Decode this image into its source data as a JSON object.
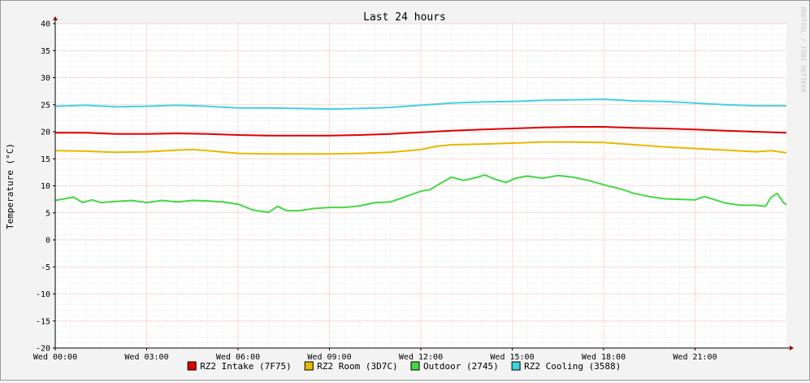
{
  "chart_data": {
    "type": "line",
    "title": "Last 24 hours",
    "ylabel": "Temperature (°C)",
    "xlabel": "",
    "watermark": "RRDTOOL / TOBI OETIKER",
    "ylim": [
      -20,
      40
    ],
    "xlim": [
      0,
      24
    ],
    "y_ticks": [
      40,
      35,
      30,
      25,
      20,
      15,
      10,
      5,
      0,
      -5,
      -10,
      -15,
      -20
    ],
    "x_ticks": [
      {
        "x": 0,
        "label": "Wed 00:00"
      },
      {
        "x": 3,
        "label": "Wed 03:00"
      },
      {
        "x": 6,
        "label": "Wed 06:00"
      },
      {
        "x": 9,
        "label": "Wed 09:00"
      },
      {
        "x": 12,
        "label": "Wed 12:00"
      },
      {
        "x": 15,
        "label": "Wed 15:00"
      },
      {
        "x": 18,
        "label": "Wed 18:00"
      },
      {
        "x": 21,
        "label": "Wed 21:00"
      }
    ],
    "grid": true,
    "legend_position": "bottom",
    "series": [
      {
        "name": "RZ2 Intake (7F75)",
        "color": "#e00000",
        "points": [
          [
            0,
            19.8
          ],
          [
            1,
            19.8
          ],
          [
            2,
            19.6
          ],
          [
            3,
            19.6
          ],
          [
            4,
            19.7
          ],
          [
            5,
            19.6
          ],
          [
            6,
            19.4
          ],
          [
            7,
            19.3
          ],
          [
            8,
            19.3
          ],
          [
            9,
            19.3
          ],
          [
            10,
            19.4
          ],
          [
            11,
            19.6
          ],
          [
            12,
            19.9
          ],
          [
            13,
            20.2
          ],
          [
            14,
            20.4
          ],
          [
            15,
            20.6
          ],
          [
            16,
            20.8
          ],
          [
            17,
            20.9
          ],
          [
            18,
            20.9
          ],
          [
            19,
            20.7
          ],
          [
            20,
            20.6
          ],
          [
            21,
            20.4
          ],
          [
            22,
            20.2
          ],
          [
            23,
            20.0
          ],
          [
            24,
            19.8
          ]
        ]
      },
      {
        "name": "RZ2 Room (3D7C)",
        "color": "#e8b800",
        "points": [
          [
            0,
            16.5
          ],
          [
            1,
            16.4
          ],
          [
            2,
            16.2
          ],
          [
            3,
            16.3
          ],
          [
            4,
            16.6
          ],
          [
            4.5,
            16.7
          ],
          [
            5,
            16.5
          ],
          [
            6,
            16.0
          ],
          [
            7,
            15.9
          ],
          [
            8,
            15.9
          ],
          [
            9,
            15.9
          ],
          [
            10,
            16.0
          ],
          [
            11,
            16.2
          ],
          [
            12,
            16.7
          ],
          [
            12.5,
            17.3
          ],
          [
            13,
            17.6
          ],
          [
            14,
            17.7
          ],
          [
            15,
            17.9
          ],
          [
            16,
            18.1
          ],
          [
            17,
            18.1
          ],
          [
            18,
            18.0
          ],
          [
            19,
            17.6
          ],
          [
            20,
            17.2
          ],
          [
            21,
            16.9
          ],
          [
            22,
            16.6
          ],
          [
            23,
            16.3
          ],
          [
            23.5,
            16.5
          ],
          [
            24,
            16.1
          ]
        ]
      },
      {
        "name": "Outdoor (2745)",
        "color": "#44d844",
        "points": [
          [
            0,
            7.3
          ],
          [
            0.3,
            7.6
          ],
          [
            0.6,
            7.9
          ],
          [
            0.9,
            6.9
          ],
          [
            1.2,
            7.4
          ],
          [
            1.5,
            6.9
          ],
          [
            2,
            7.1
          ],
          [
            2.5,
            7.3
          ],
          [
            3,
            6.9
          ],
          [
            3.5,
            7.3
          ],
          [
            4,
            7.0
          ],
          [
            4.5,
            7.3
          ],
          [
            5,
            7.2
          ],
          [
            5.5,
            7.0
          ],
          [
            6,
            6.6
          ],
          [
            6.5,
            5.5
          ],
          [
            7,
            5.1
          ],
          [
            7.3,
            6.2
          ],
          [
            7.6,
            5.4
          ],
          [
            8,
            5.4
          ],
          [
            8.5,
            5.8
          ],
          [
            9,
            6.0
          ],
          [
            9.5,
            6.0
          ],
          [
            10,
            6.3
          ],
          [
            10.5,
            6.9
          ],
          [
            11,
            7.0
          ],
          [
            11.5,
            8.0
          ],
          [
            12,
            9.0
          ],
          [
            12.3,
            9.3
          ],
          [
            12.6,
            10.3
          ],
          [
            13,
            11.6
          ],
          [
            13.4,
            11.0
          ],
          [
            13.8,
            11.5
          ],
          [
            14.1,
            12.0
          ],
          [
            14.4,
            11.3
          ],
          [
            14.8,
            10.6
          ],
          [
            15.1,
            11.4
          ],
          [
            15.5,
            11.8
          ],
          [
            16,
            11.4
          ],
          [
            16.5,
            11.9
          ],
          [
            17,
            11.6
          ],
          [
            17.5,
            11.0
          ],
          [
            18,
            10.2
          ],
          [
            18.5,
            9.5
          ],
          [
            19,
            8.6
          ],
          [
            19.5,
            8.0
          ],
          [
            20,
            7.6
          ],
          [
            20.5,
            7.5
          ],
          [
            21,
            7.4
          ],
          [
            21.3,
            8.0
          ],
          [
            21.6,
            7.5
          ],
          [
            22,
            6.8
          ],
          [
            22.5,
            6.4
          ],
          [
            23,
            6.4
          ],
          [
            23.3,
            6.2
          ],
          [
            23.5,
            7.9
          ],
          [
            23.7,
            8.6
          ],
          [
            23.9,
            6.9
          ],
          [
            24,
            6.5
          ]
        ]
      },
      {
        "name": "RZ2 Cooling (3588)",
        "color": "#40d2e0",
        "points": [
          [
            0,
            24.7
          ],
          [
            1,
            24.9
          ],
          [
            2,
            24.6
          ],
          [
            3,
            24.7
          ],
          [
            4,
            24.9
          ],
          [
            5,
            24.7
          ],
          [
            6,
            24.4
          ],
          [
            7,
            24.4
          ],
          [
            8,
            24.3
          ],
          [
            9,
            24.2
          ],
          [
            10,
            24.3
          ],
          [
            11,
            24.5
          ],
          [
            12,
            24.9
          ],
          [
            13,
            25.3
          ],
          [
            14,
            25.5
          ],
          [
            15,
            25.6
          ],
          [
            16,
            25.8
          ],
          [
            17,
            25.9
          ],
          [
            18,
            26.0
          ],
          [
            19,
            25.7
          ],
          [
            20,
            25.6
          ],
          [
            21,
            25.3
          ],
          [
            22,
            25.0
          ],
          [
            23,
            24.8
          ],
          [
            24,
            24.8
          ]
        ]
      }
    ]
  }
}
